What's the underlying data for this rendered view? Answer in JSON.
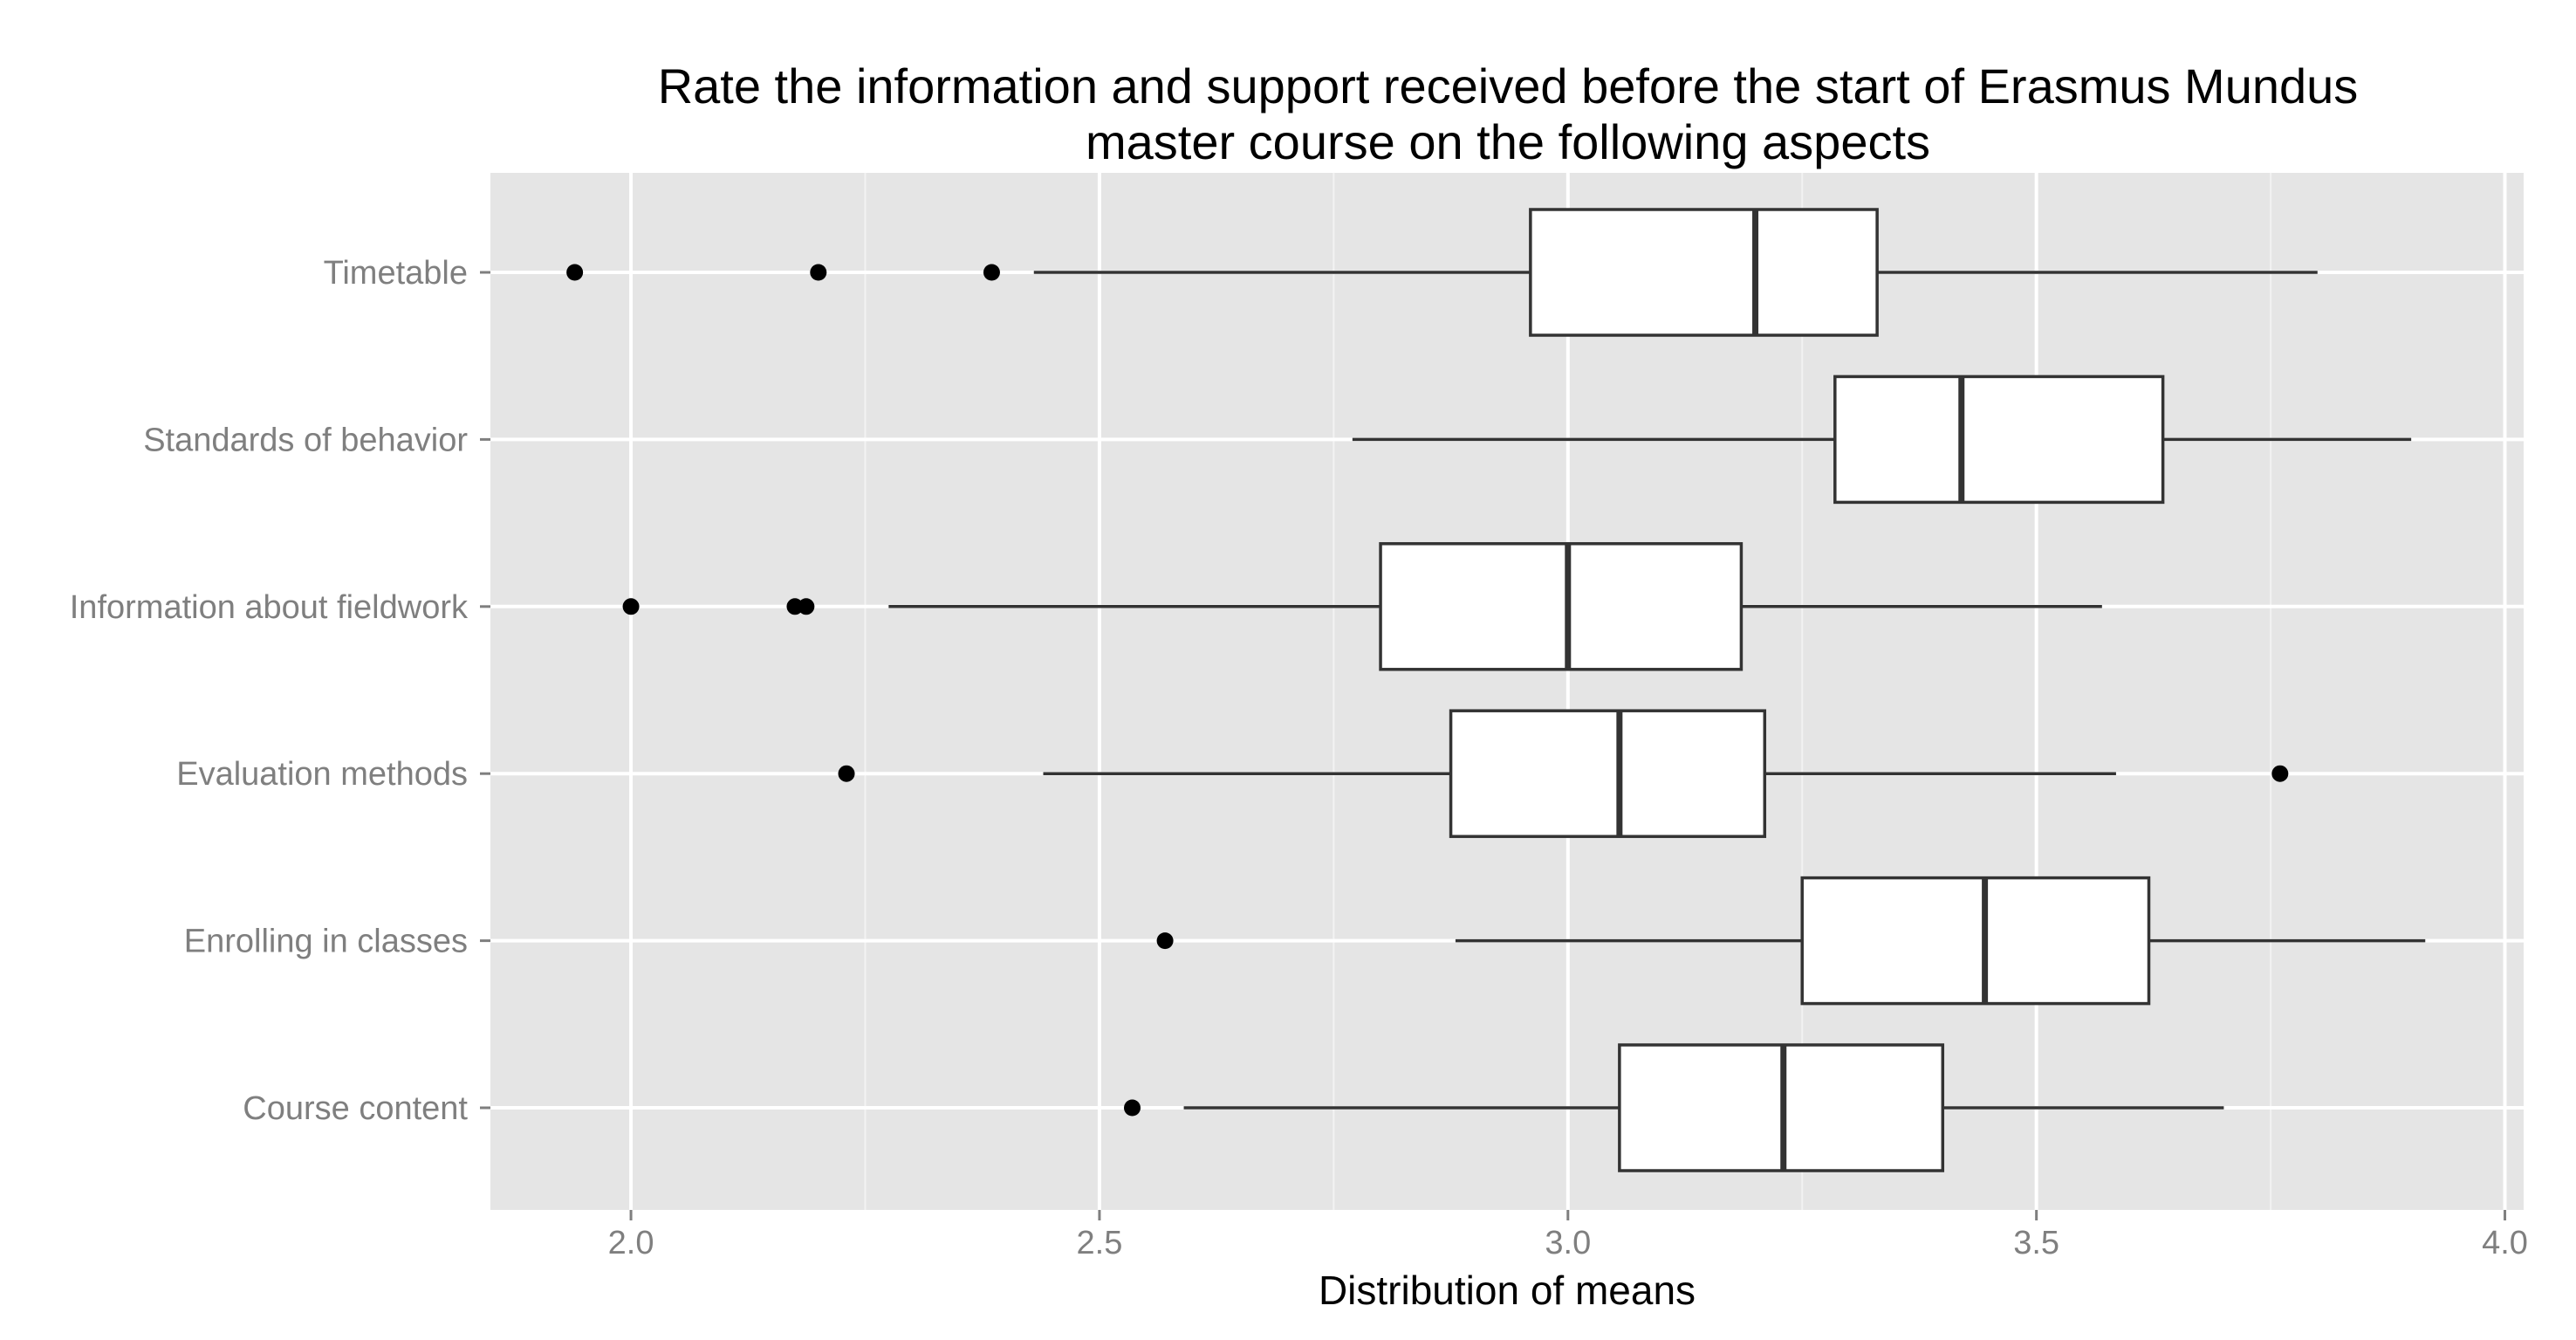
{
  "chart_data": {
    "type": "boxplot",
    "title_lines": [
      "Rate the information and support received before the start of Erasmus Mundus",
      "master course on the following aspects"
    ],
    "xlabel": "Distribution of means",
    "ylabel": "",
    "xlim": [
      1.85,
      4.02
    ],
    "x_ticks": [
      2.0,
      2.5,
      3.0,
      3.5,
      4.0
    ],
    "x_tick_labels": [
      "2.0",
      "2.5",
      "3.0",
      "3.5",
      "4.0"
    ],
    "minor_ticks": [
      2.25,
      2.75,
      3.25,
      3.75
    ],
    "grid": true,
    "colors": {
      "panel": "#e5e5e5",
      "grid_major": "#ffffff",
      "grid_minor": "#f2f2f2",
      "box_fill": "#ffffff",
      "box_stroke": "#333333",
      "outlier": "#000000",
      "tick_text": "#7f7f7f"
    },
    "categories": [
      {
        "label": "Timetable",
        "whisker_low": 2.43,
        "q1": 2.96,
        "median": 3.2,
        "q3": 3.33,
        "whisker_high": 3.8,
        "outliers": [
          1.94,
          2.2,
          2.385
        ]
      },
      {
        "label": "Standards of behavior",
        "whisker_low": 2.77,
        "q1": 3.285,
        "median": 3.42,
        "q3": 3.635,
        "whisker_high": 3.9,
        "outliers": []
      },
      {
        "label": "Information about fieldwork",
        "whisker_low": 2.275,
        "q1": 2.8,
        "median": 3.0,
        "q3": 3.185,
        "whisker_high": 3.57,
        "outliers": [
          2.0,
          2.175,
          2.187
        ]
      },
      {
        "label": "Evaluation methods",
        "whisker_low": 2.44,
        "q1": 2.875,
        "median": 3.055,
        "q3": 3.21,
        "whisker_high": 3.585,
        "outliers": [
          2.23,
          3.76
        ]
      },
      {
        "label": "Enrolling in classes",
        "whisker_low": 2.88,
        "q1": 3.25,
        "median": 3.445,
        "q3": 3.62,
        "whisker_high": 3.915,
        "outliers": [
          2.57
        ]
      },
      {
        "label": "Course content",
        "whisker_low": 2.59,
        "q1": 3.055,
        "median": 3.23,
        "q3": 3.4,
        "whisker_high": 3.7,
        "outliers": [
          2.535
        ]
      }
    ]
  }
}
